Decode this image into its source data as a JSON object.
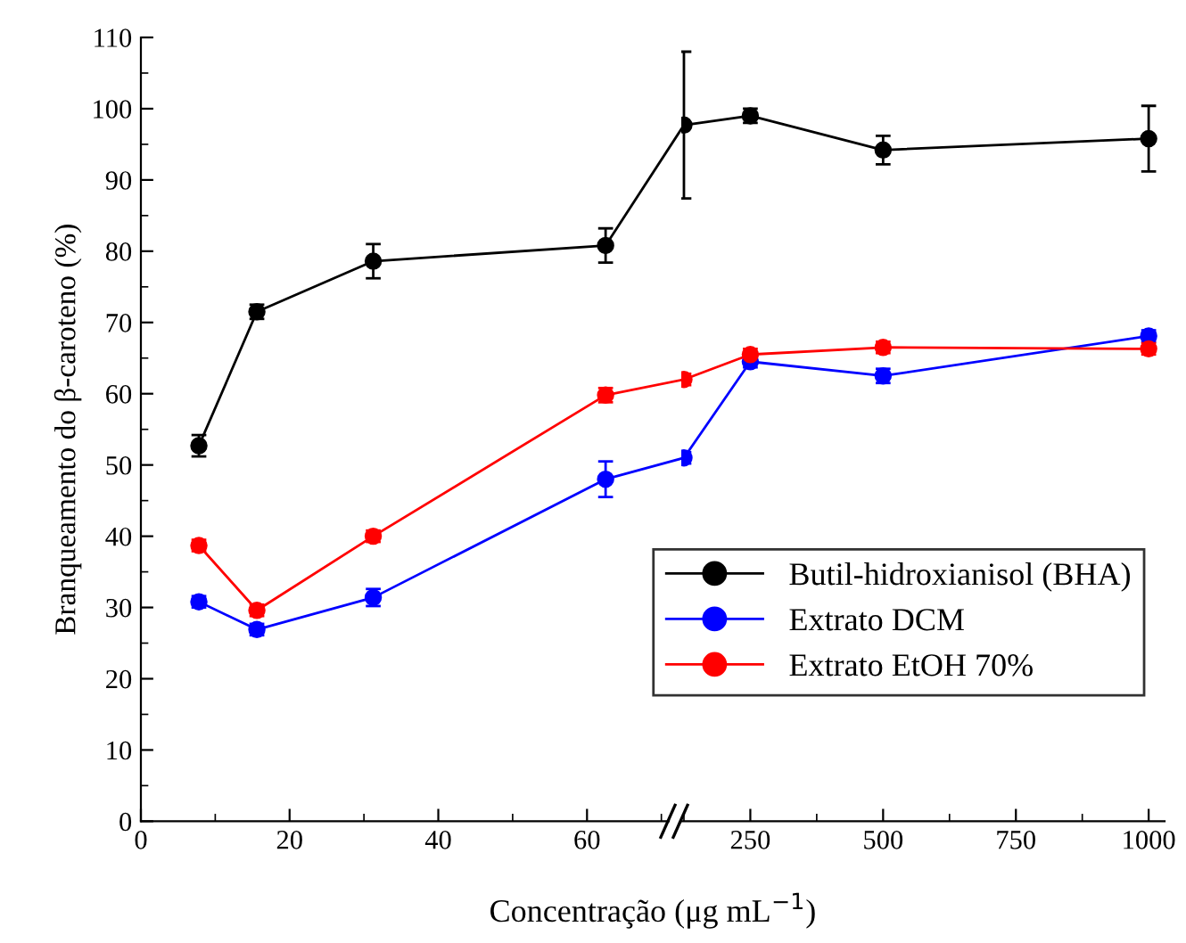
{
  "chart_data": [
    {
      "type": "line",
      "xlabel": "Concentração (μg mL$^{−1}$)",
      "ylabel": "Branqueamento do β-caroteno (%)",
      "xlim": [
        0,
        71
      ],
      "xticks": [
        0,
        20,
        40,
        60
      ],
      "ylim": [
        0,
        110
      ],
      "yticks": [
        0,
        10,
        20,
        30,
        40,
        50,
        60,
        70,
        80,
        90,
        100,
        110
      ],
      "marker": "circle",
      "legend": false,
      "grid": false,
      "series": [
        {
          "color": "#000000",
          "x": [
            7.8,
            15.6,
            31.25,
            62.5
          ],
          "values": [
            52.7,
            71.5,
            78.6,
            80.8
          ],
          "errors": [
            1.5,
            1,
            2.4,
            2.4
          ]
        },
        {
          "color": "#0000ff",
          "x": [
            7.8,
            15.6,
            31.25,
            62.5
          ],
          "values": [
            30.8,
            26.9,
            31.4,
            48.0
          ],
          "errors": [
            0.8,
            0.8,
            1.2,
            2.5
          ]
        },
        {
          "color": "#ff0000",
          "x": [
            7.8,
            15.6,
            31.25,
            62.5
          ],
          "values": [
            38.7,
            29.6,
            40.0,
            59.8
          ],
          "errors": [
            0.8,
            0.8,
            0.8,
            1
          ]
        }
      ]
    },
    {
      "type": "line",
      "xlim": [
        120,
        1030
      ],
      "xticks": [
        250,
        500,
        750,
        1000
      ],
      "ylim": [
        0,
        110
      ],
      "tick_labels": "x",
      "marker": "circle",
      "legend": "bottom",
      "grid": false,
      "series": [
        {
          "name": "Butil-hidroxianisol (BHA)",
          "color": "#000000",
          "x": [
            125,
            250,
            500,
            1000
          ],
          "values": [
            97.7,
            99.0,
            94.2,
            95.8
          ],
          "errors": [
            10.3,
            1,
            2,
            4.6
          ]
        },
        {
          "name": "Extrato DCM",
          "color": "#0000ff",
          "x": [
            125,
            250,
            500,
            1000
          ],
          "values": [
            51.0,
            64.5,
            62.5,
            68.1
          ],
          "errors": [
            0.8,
            0.8,
            1,
            0.8
          ]
        },
        {
          "name": "Extrato EtOH 70%",
          "color": "#ff0000",
          "x": [
            125,
            250,
            500,
            1000
          ],
          "values": [
            62.0,
            65.5,
            66.5,
            66.3
          ],
          "errors": [
            0.8,
            0.8,
            0.8,
            0.8
          ]
        }
      ]
    }
  ]
}
